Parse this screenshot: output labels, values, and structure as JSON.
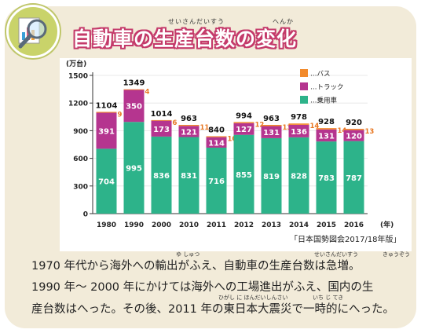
{
  "title": "自動車の生産台数の変化",
  "title_ruby": [
    "せいさんだいすう",
    "へんか"
  ],
  "chart_data": {
    "type": "bar",
    "stacked": true,
    "unit_label": "(万台)",
    "x_unit": "(年)",
    "categories": [
      "1980",
      "1990",
      "2000",
      "2010",
      "2011",
      "2012",
      "2013",
      "2014",
      "2015",
      "2016"
    ],
    "series": [
      {
        "name": "…乗用車",
        "color": "#2db38a",
        "values": [
          704,
          995,
          836,
          831,
          716,
          855,
          819,
          828,
          783,
          787
        ]
      },
      {
        "name": "…トラック",
        "color": "#b5358f",
        "values": [
          391,
          350,
          173,
          121,
          114,
          127,
          131,
          136,
          131,
          120
        ]
      },
      {
        "name": "…バス",
        "color": "#f28a2b",
        "values": [
          9,
          4,
          6,
          11,
          10,
          12,
          13,
          14,
          14,
          13
        ]
      }
    ],
    "totals": [
      1104,
      1349,
      1014,
      963,
      840,
      994,
      963,
      978,
      928,
      920
    ],
    "ylim": [
      0,
      1500
    ],
    "yticks": [
      0,
      300,
      600,
      900,
      1200,
      1500
    ],
    "legend": "top-right"
  },
  "source": "「日本国勢図会2017/18年版」",
  "body_lines": [
    "1970 年代から海外への輸出がふえ、自動車の生産台数は急増。",
    "1990 年～ 2000 年にかけては海外への工場進出がふえ、国内の生",
    "産台数はへった。その後、2011 年の東日本大震災で一時的にへった。"
  ],
  "body_ruby": [
    "ゆ しゅつ",
    "せいさんだいすう",
    "きゅうぞう",
    "ひがし に ほんだいしんさい",
    "いち じ てき"
  ],
  "colors": {
    "accent": "#c43a6a",
    "panel": "#f2ebd9"
  }
}
